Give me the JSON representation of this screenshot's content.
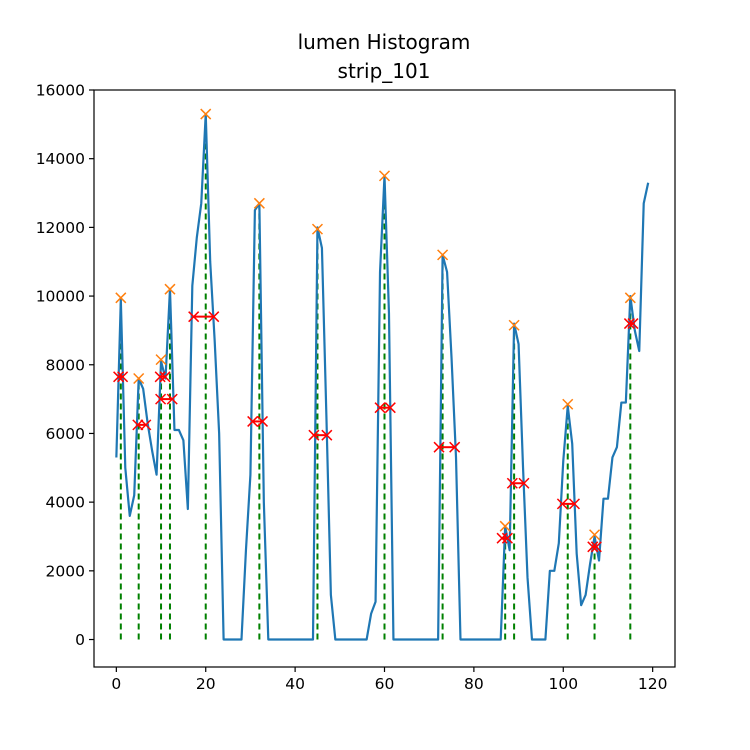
{
  "chart_data": {
    "type": "line",
    "title": "lumen Histogram",
    "subtitle": "strip_101",
    "xlabel": "",
    "ylabel": "",
    "xlim": [
      -5,
      125
    ],
    "ylim": [
      -800,
      16000
    ],
    "xticks": [
      0,
      20,
      40,
      60,
      80,
      100,
      120
    ],
    "yticks": [
      0,
      2000,
      4000,
      6000,
      8000,
      10000,
      12000,
      14000,
      16000
    ],
    "grid": false,
    "colors": {
      "line": "#1f77b4",
      "peaks": "#ff7f0e",
      "half_max": "#ff0000",
      "vlines": "#008000"
    },
    "series": [
      {
        "role": "line",
        "x": [
          0,
          1,
          2,
          3,
          4,
          5,
          6,
          7,
          8,
          9,
          10,
          11,
          12,
          13,
          14,
          15,
          16,
          17,
          18,
          19,
          20,
          21,
          22,
          23,
          24,
          25,
          26,
          27,
          28,
          29,
          30,
          31,
          32,
          33,
          34,
          35,
          36,
          37,
          38,
          39,
          40,
          41,
          42,
          43,
          44,
          45,
          46,
          47,
          48,
          49,
          50,
          51,
          52,
          53,
          54,
          55,
          56,
          57,
          58,
          59,
          60,
          61,
          62,
          63,
          64,
          65,
          66,
          67,
          68,
          69,
          70,
          71,
          72,
          73,
          74,
          75,
          76,
          77,
          78,
          79,
          80,
          81,
          82,
          83,
          84,
          85,
          86,
          87,
          88,
          89,
          90,
          91,
          92,
          93,
          94,
          95,
          96,
          97,
          98,
          99,
          100,
          101,
          102,
          103,
          104,
          105,
          106,
          107,
          108,
          109,
          110,
          111,
          112,
          113,
          114,
          115,
          116,
          117,
          118,
          119
        ],
        "y": [
          5300,
          9900,
          5000,
          3600,
          4200,
          7600,
          7300,
          6300,
          5500,
          4800,
          8100,
          7600,
          10200,
          6100,
          6100,
          5800,
          3800,
          10300,
          11700,
          12700,
          15300,
          11000,
          8700,
          6000,
          0,
          0,
          0,
          0,
          0,
          2600,
          4800,
          12500,
          12700,
          4000,
          0,
          0,
          0,
          0,
          0,
          0,
          0,
          0,
          0,
          0,
          0,
          12000,
          11400,
          6500,
          1300,
          0,
          0,
          0,
          0,
          0,
          0,
          0,
          0,
          750,
          1100,
          10700,
          13500,
          9500,
          0,
          0,
          0,
          0,
          0,
          0,
          0,
          0,
          0,
          0,
          0,
          11200,
          10700,
          8200,
          5300,
          0,
          0,
          0,
          0,
          0,
          0,
          0,
          0,
          0,
          0,
          3300,
          2600,
          9200,
          8600,
          5000,
          1800,
          0,
          0,
          0,
          0,
          2000,
          2000,
          2800,
          5200,
          6800,
          5700,
          2500,
          1000,
          1300,
          2200,
          3000,
          2300,
          4100,
          4100,
          5300,
          5600,
          6900,
          6900,
          10000,
          9000,
          8400,
          12700,
          13300
        ]
      }
    ],
    "peaks": [
      {
        "x": 1,
        "y": 9950
      },
      {
        "x": 5,
        "y": 7600
      },
      {
        "x": 10,
        "y": 8150
      },
      {
        "x": 12,
        "y": 10200
      },
      {
        "x": 20,
        "y": 15300
      },
      {
        "x": 32,
        "y": 12700
      },
      {
        "x": 45,
        "y": 11950
      },
      {
        "x": 60,
        "y": 13500
      },
      {
        "x": 73,
        "y": 11200
      },
      {
        "x": 87,
        "y": 3300
      },
      {
        "x": 89,
        "y": 9150
      },
      {
        "x": 101,
        "y": 6850
      },
      {
        "x": 107,
        "y": 3050
      },
      {
        "x": 115,
        "y": 9950
      }
    ],
    "half_max_widths": [
      {
        "y": 7650,
        "x_left": 0.5,
        "x_right": 1.4
      },
      {
        "y": 6250,
        "x_left": 4.8,
        "x_right": 6.6
      },
      {
        "y": 7650,
        "x_left": 9.8,
        "x_right": 10.9
      },
      {
        "y": 7000,
        "x_left": 9.9,
        "x_right": 12.5
      },
      {
        "y": 9400,
        "x_left": 17.3,
        "x_right": 21.8
      },
      {
        "y": 6350,
        "x_left": 30.5,
        "x_right": 32.7
      },
      {
        "y": 5950,
        "x_left": 44.2,
        "x_right": 47.1
      },
      {
        "y": 6750,
        "x_left": 59.0,
        "x_right": 61.3
      },
      {
        "y": 5600,
        "x_left": 72.2,
        "x_right": 75.7
      },
      {
        "y": 2950,
        "x_left": 86.3,
        "x_right": 87.5
      },
      {
        "y": 4550,
        "x_left": 88.6,
        "x_right": 91.2
      },
      {
        "y": 3950,
        "x_left": 99.8,
        "x_right": 102.5
      },
      {
        "y": 2700,
        "x_left": 106.6,
        "x_right": 107.4
      },
      {
        "y": 9200,
        "x_left": 114.8,
        "x_right": 115.6
      }
    ]
  }
}
